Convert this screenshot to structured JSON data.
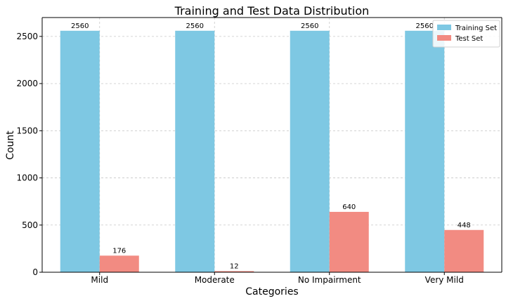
{
  "chart_data": {
    "type": "bar",
    "title": "Training and Test Data Distribution",
    "xlabel": "Categories",
    "ylabel": "Count",
    "categories": [
      "Mild",
      "Moderate",
      "No Impairment",
      "Very Mild"
    ],
    "series": [
      {
        "name": "Training Set",
        "color": "#7ec8e3",
        "values": [
          2560,
          2560,
          2560,
          2560
        ]
      },
      {
        "name": "Test Set",
        "color": "#f28b82",
        "values": [
          176,
          12,
          640,
          448
        ]
      }
    ],
    "ylim": [
      0,
      2700
    ],
    "yticks": [
      0,
      500,
      1000,
      1500,
      2000,
      2500
    ],
    "grid": true,
    "legend": "top-right"
  }
}
